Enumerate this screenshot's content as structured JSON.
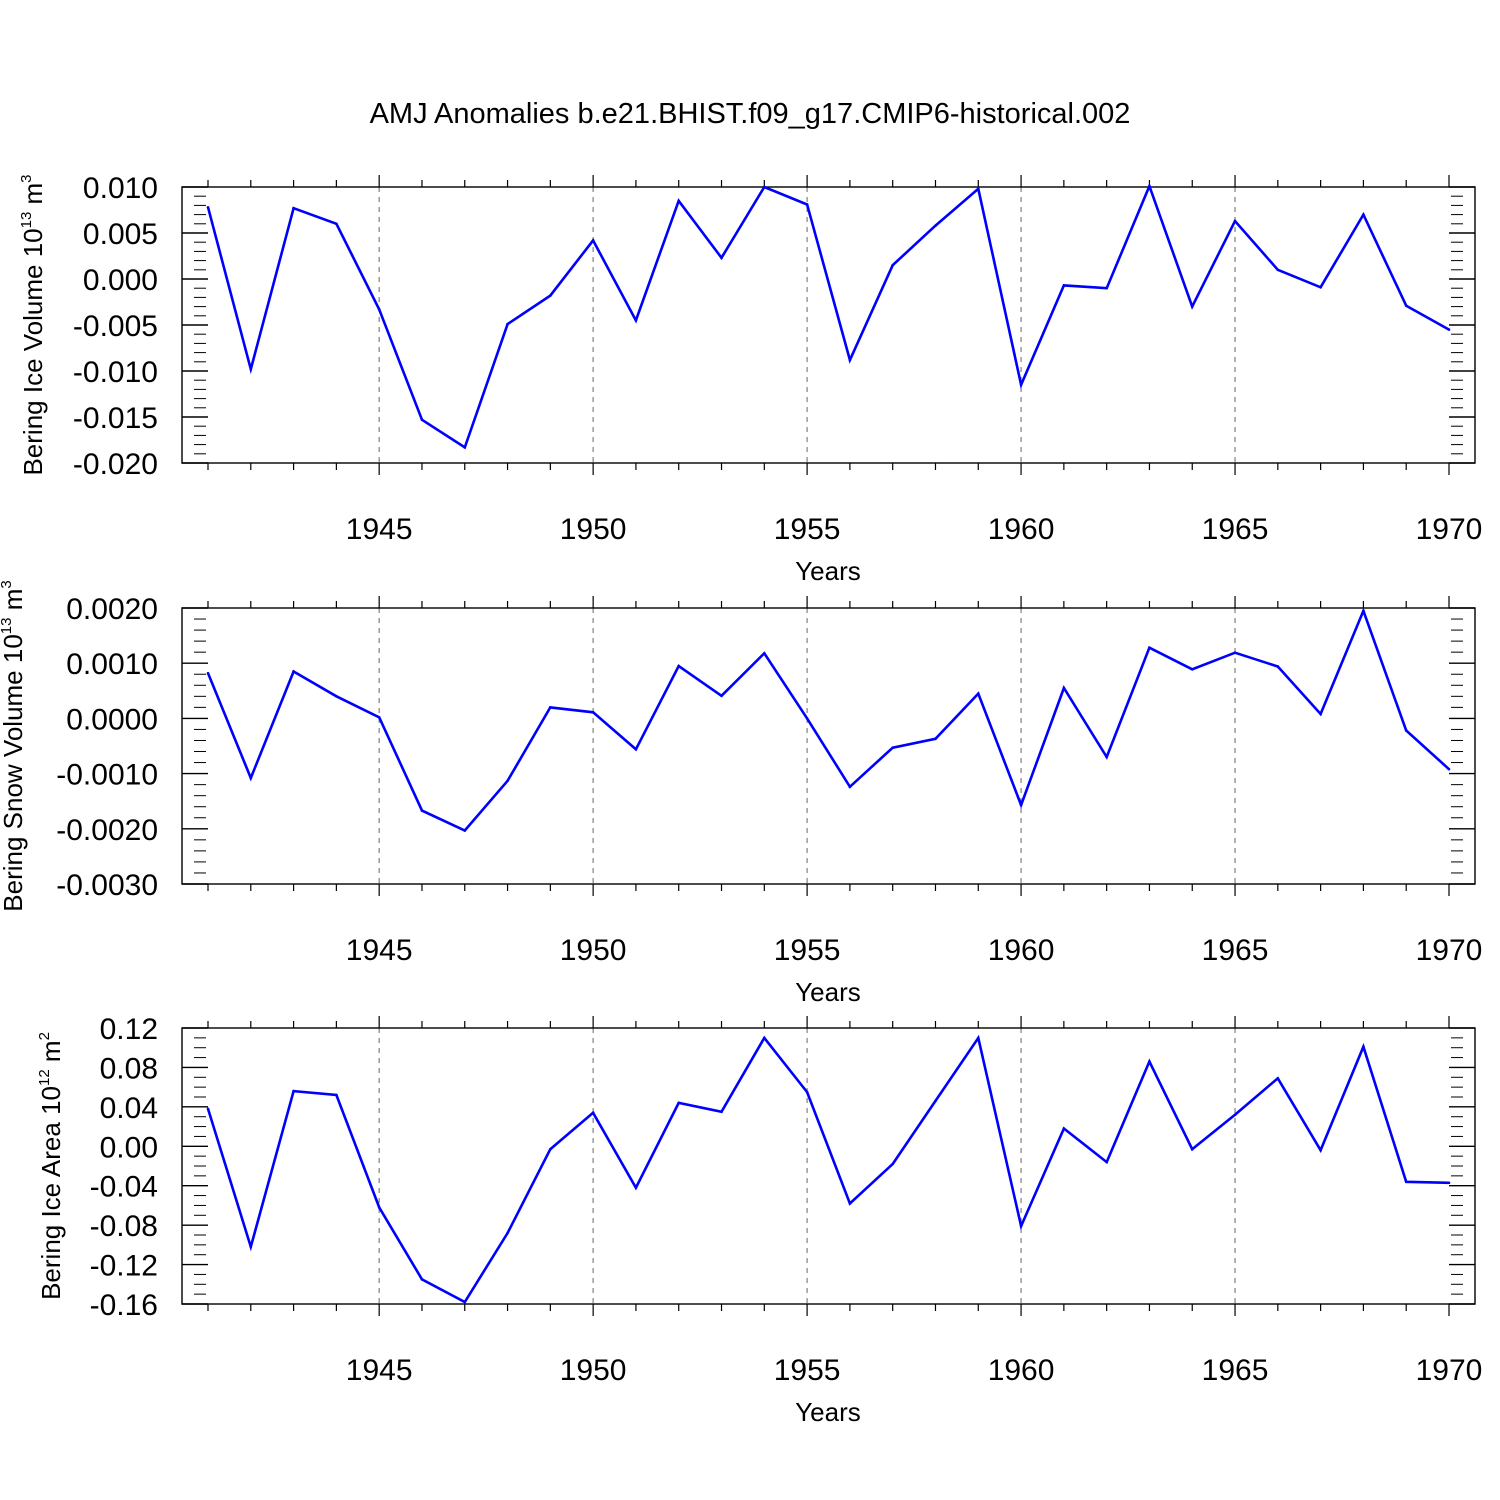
{
  "figure_title": "AMJ Anomalies b.e21.BHIST.f09_g17.CMIP6-historical.002",
  "colors": {
    "series": "#0000ff",
    "axis": "#000000",
    "grid": "#808080"
  },
  "chart_data": [
    {
      "type": "line",
      "ylabel_main": "Bering Ice Volume 10",
      "ylabel_exp": "13",
      "ylabel_unit": " m",
      "ylabel_unit_exp": "3",
      "xlabel": "Years",
      "xlim": [
        1941,
        1970
      ],
      "ylim": [
        -0.02,
        0.01
      ],
      "xticks": [
        1945,
        1950,
        1955,
        1960,
        1965,
        1970
      ],
      "ymajor": [
        -0.02,
        -0.015,
        -0.01,
        -0.005,
        0.0,
        0.005,
        0.01
      ],
      "ytick_labels": [
        "-0.020",
        "-0.015",
        "-0.010",
        "-0.005",
        "0.000",
        "0.005",
        "0.010"
      ],
      "yminor_step": 0.001,
      "x": [
        1941,
        1942,
        1943,
        1944,
        1945,
        1946,
        1947,
        1948,
        1949,
        1950,
        1951,
        1952,
        1953,
        1954,
        1955,
        1956,
        1957,
        1958,
        1959,
        1960,
        1961,
        1962,
        1963,
        1964,
        1965,
        1966,
        1967,
        1968,
        1969,
        1970
      ],
      "values": [
        0.0078,
        -0.0098,
        0.0077,
        0.006,
        -0.0033,
        -0.0153,
        -0.0183,
        -0.0049,
        -0.0018,
        0.0042,
        -0.0045,
        0.0085,
        0.0023,
        0.01,
        0.0081,
        -0.0088,
        0.0015,
        0.0058,
        0.0098,
        -0.0115,
        -0.0007,
        -0.001,
        0.0101,
        -0.003,
        0.0063,
        0.001,
        -0.0009,
        0.007,
        -0.0029,
        -0.0055
      ]
    },
    {
      "type": "line",
      "ylabel_main": "Bering Snow Volume 10",
      "ylabel_exp": "13",
      "ylabel_unit": " m",
      "ylabel_unit_exp": "3",
      "xlabel": "Years",
      "xlim": [
        1941,
        1970
      ],
      "ylim": [
        -0.003,
        0.002
      ],
      "xticks": [
        1945,
        1950,
        1955,
        1960,
        1965,
        1970
      ],
      "ymajor": [
        -0.003,
        -0.002,
        -0.001,
        0.0,
        0.001,
        0.002
      ],
      "ytick_labels": [
        "-0.0030",
        "-0.0020",
        "-0.0010",
        "0.0000",
        "0.0010",
        "0.0020"
      ],
      "yminor_step": 0.0002,
      "x": [
        1941,
        1942,
        1943,
        1944,
        1945,
        1946,
        1947,
        1948,
        1949,
        1950,
        1951,
        1952,
        1953,
        1954,
        1955,
        1956,
        1957,
        1958,
        1959,
        1960,
        1961,
        1962,
        1963,
        1964,
        1965,
        1966,
        1967,
        1968,
        1969,
        1970
      ],
      "values": [
        0.00082,
        -0.00108,
        0.00085,
        0.0004,
        2e-05,
        -0.00167,
        -0.00203,
        -0.00113,
        0.0002,
        0.00011,
        -0.00056,
        0.00095,
        0.00041,
        0.00118,
        0.0,
        -0.00124,
        -0.00053,
        -0.00037,
        0.00045,
        -0.00157,
        0.00055,
        -0.0007,
        0.00128,
        0.00089,
        0.00119,
        0.00094,
        8e-05,
        0.00195,
        -0.00022,
        -0.00092
      ]
    },
    {
      "type": "line",
      "ylabel_main": "Bering Ice Area 10",
      "ylabel_exp": "12",
      "ylabel_unit": " m",
      "ylabel_unit_exp": "2",
      "xlabel": "Years",
      "xlim": [
        1941,
        1970
      ],
      "ylim": [
        -0.16,
        0.12
      ],
      "xticks": [
        1945,
        1950,
        1955,
        1960,
        1965,
        1970
      ],
      "ymajor": [
        -0.16,
        -0.12,
        -0.08,
        -0.04,
        0.0,
        0.04,
        0.08,
        0.12
      ],
      "ytick_labels": [
        "-0.16",
        "-0.12",
        "-0.08",
        "-0.04",
        "0.00",
        "0.04",
        "0.08",
        "0.12"
      ],
      "yminor_step": 0.01,
      "x": [
        1941,
        1942,
        1943,
        1944,
        1945,
        1946,
        1947,
        1948,
        1949,
        1950,
        1951,
        1952,
        1953,
        1954,
        1955,
        1956,
        1957,
        1958,
        1959,
        1960,
        1961,
        1962,
        1963,
        1964,
        1965,
        1966,
        1967,
        1968,
        1969,
        1970
      ],
      "values": [
        0.038,
        -0.102,
        0.056,
        0.052,
        -0.062,
        -0.135,
        -0.158,
        -0.088,
        -0.003,
        0.034,
        -0.042,
        0.044,
        0.035,
        0.11,
        0.055,
        -0.058,
        -0.018,
        0.046,
        0.11,
        -0.081,
        0.018,
        -0.016,
        0.086,
        -0.003,
        0.032,
        0.069,
        -0.004,
        0.101,
        -0.036,
        -0.037
      ]
    }
  ]
}
